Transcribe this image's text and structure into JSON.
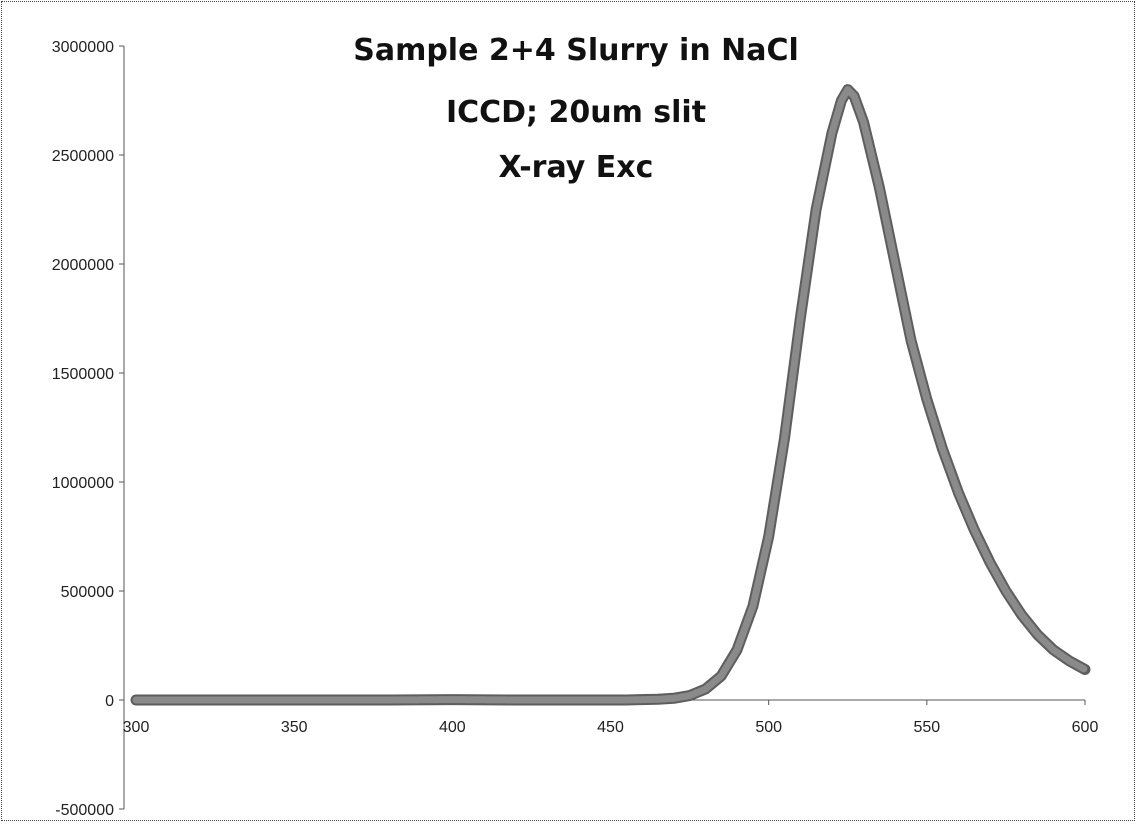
{
  "chart_data": {
    "type": "line",
    "title_lines": [
      "Sample 2+4 Slurry in NaCl",
      "ICCD; 20um slit",
      "X-ray Exc"
    ],
    "xlabel": "",
    "ylabel": "",
    "xlim": [
      300,
      600
    ],
    "ylim": [
      -500000,
      3000000
    ],
    "x_ticks": [
      300,
      350,
      400,
      450,
      500,
      550,
      600
    ],
    "y_ticks": [
      -500000,
      0,
      500000,
      1000000,
      1500000,
      2000000,
      2500000,
      3000000
    ],
    "grid": false,
    "legend": "none",
    "series_color": "#8a8a8a",
    "series": [
      {
        "x": [
          300,
          320,
          340,
          360,
          380,
          400,
          420,
          440,
          455,
          465,
          470,
          475,
          480,
          485,
          490,
          495,
          500,
          505,
          510,
          515,
          520,
          523,
          525,
          527,
          530,
          535,
          540,
          545,
          550,
          555,
          560,
          565,
          570,
          575,
          580,
          585,
          590,
          595,
          600
        ],
        "y": [
          0,
          0,
          0,
          0,
          0,
          2000,
          0,
          0,
          0,
          3000,
          8000,
          20000,
          50000,
          110000,
          230000,
          430000,
          750000,
          1200000,
          1750000,
          2250000,
          2600000,
          2750000,
          2800000,
          2770000,
          2650000,
          2350000,
          2000000,
          1650000,
          1380000,
          1150000,
          950000,
          780000,
          630000,
          500000,
          390000,
          300000,
          230000,
          180000,
          140000
        ]
      }
    ]
  }
}
